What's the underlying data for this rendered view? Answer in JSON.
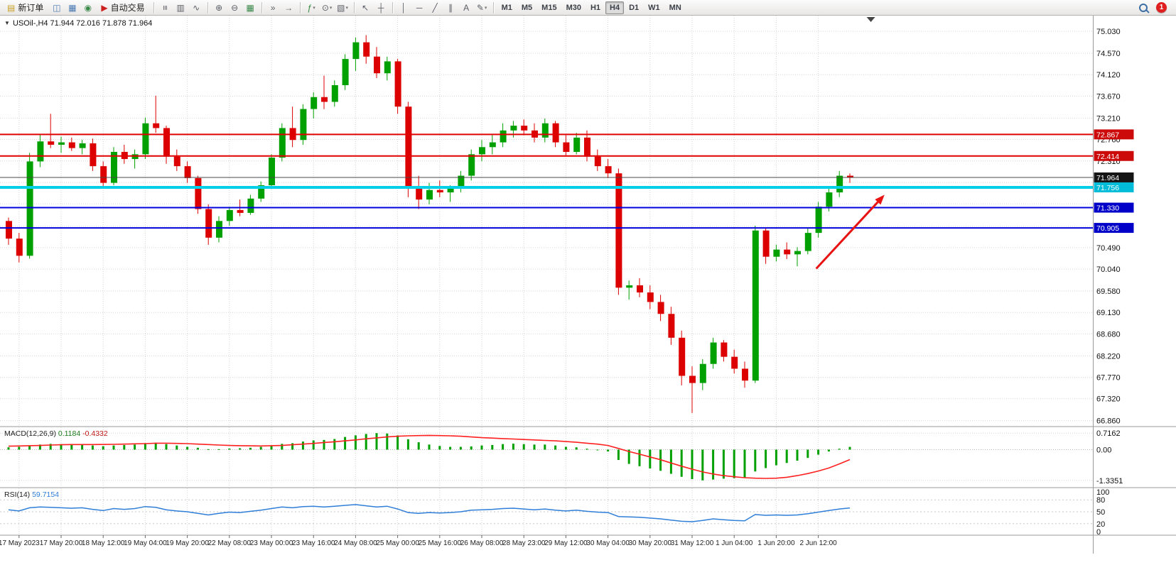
{
  "app": {
    "notification_count": "1"
  },
  "toolbar": {
    "items": [
      {
        "type": "button",
        "name": "new-order-button",
        "glyph": "▤",
        "glyph_color": "#c8a028",
        "label": "新订单"
      },
      {
        "type": "icon",
        "name": "charts-grid-icon",
        "glyph": "◫",
        "color": "#4a7ab5"
      },
      {
        "type": "icon",
        "name": "profiles-icon",
        "glyph": "▦",
        "color": "#4a7ab5"
      },
      {
        "type": "icon",
        "name": "market-watch-icon",
        "glyph": "◉",
        "color": "#3a8a4a"
      },
      {
        "type": "button",
        "name": "autotrading-button",
        "glyph": "▶",
        "glyph_color": "#cc2020",
        "label": "自动交易"
      },
      {
        "type": "sep"
      },
      {
        "type": "icon",
        "name": "bar-chart-type-icon",
        "glyph": "≡",
        "rot": true
      },
      {
        "type": "icon",
        "name": "candlestick-type-icon",
        "glyph": "▥"
      },
      {
        "type": "icon",
        "name": "line-chart-type-icon",
        "glyph": "∿"
      },
      {
        "type": "sep"
      },
      {
        "type": "icon",
        "name": "zoom-in-icon",
        "glyph": "⊕"
      },
      {
        "type": "icon",
        "name": "zoom-out-icon",
        "glyph": "⊖"
      },
      {
        "type": "icon",
        "name": "tile-windows-icon",
        "glyph": "▦",
        "color": "#3a8a4a"
      },
      {
        "type": "sep"
      },
      {
        "type": "icon",
        "name": "auto-scroll-icon",
        "glyph": "»"
      },
      {
        "type": "icon",
        "name": "chart-shift-icon",
        "glyph": "→"
      },
      {
        "type": "sep"
      },
      {
        "type": "icon",
        "name": "indicators-icon",
        "glyph": "ƒ",
        "color": "#2f8a3a",
        "caret": true
      },
      {
        "type": "icon",
        "name": "periods-icon",
        "glyph": "⊙",
        "caret": true
      },
      {
        "type": "icon",
        "name": "templates-icon",
        "glyph": "▧",
        "caret": true
      },
      {
        "type": "sep"
      },
      {
        "type": "icon",
        "name": "cursor-icon",
        "glyph": "↖"
      },
      {
        "type": "icon",
        "name": "crosshair-icon",
        "glyph": "┼"
      },
      {
        "type": "sep"
      },
      {
        "type": "icon",
        "name": "vertical-line-icon",
        "glyph": "│"
      },
      {
        "type": "icon",
        "name": "horizontal-line-icon",
        "glyph": "─"
      },
      {
        "type": "icon",
        "name": "trendline-icon",
        "glyph": "╱"
      },
      {
        "type": "icon",
        "name": "equidistant-channel-icon",
        "glyph": "∥"
      },
      {
        "type": "icon",
        "name": "text-icon",
        "glyph": "A"
      },
      {
        "type": "icon",
        "name": "arrows-tool-icon",
        "glyph": "✎",
        "caret": true
      },
      {
        "type": "sep"
      },
      {
        "type": "tf",
        "label": "M1"
      },
      {
        "type": "tf",
        "label": "M5"
      },
      {
        "type": "tf",
        "label": "M15"
      },
      {
        "type": "tf",
        "label": "M30"
      },
      {
        "type": "tf",
        "label": "H1"
      },
      {
        "type": "tf",
        "label": "H4",
        "active": true
      },
      {
        "type": "tf",
        "label": "D1"
      },
      {
        "type": "tf",
        "label": "W1"
      },
      {
        "type": "tf",
        "label": "MN"
      },
      {
        "type": "spacer"
      },
      {
        "type": "search",
        "name": "search-icon"
      },
      {
        "type": "badge",
        "name": "notification-badge"
      }
    ]
  },
  "chart_data": [
    {
      "type": "candlestick",
      "symbol": "USOil-",
      "timeframe": "H4",
      "ohlc": {
        "open": "71.944",
        "high": "72.016",
        "low": "71.878",
        "close": "71.964"
      },
      "collapse_glyph": "▼",
      "up_color": "#00a000",
      "down_color": "#dd0000",
      "price_range": [
        66.75,
        75.36
      ],
      "candles": [
        [
          71.05,
          71.12,
          70.55,
          70.68
        ],
        [
          70.68,
          70.8,
          70.18,
          70.32
        ],
        [
          70.32,
          72.48,
          70.26,
          72.3
        ],
        [
          72.3,
          72.88,
          72.18,
          72.72
        ],
        [
          72.72,
          73.3,
          72.58,
          72.65
        ],
        [
          72.65,
          72.82,
          72.48,
          72.7
        ],
        [
          72.7,
          72.8,
          72.52,
          72.58
        ],
        [
          72.58,
          72.75,
          72.45,
          72.68
        ],
        [
          72.68,
          72.78,
          72.1,
          72.2
        ],
        [
          72.2,
          72.3,
          71.76,
          71.85
        ],
        [
          71.85,
          72.6,
          71.8,
          72.5
        ],
        [
          72.5,
          72.65,
          72.25,
          72.35
        ],
        [
          72.35,
          72.55,
          72.15,
          72.45
        ],
        [
          72.45,
          73.22,
          72.35,
          73.1
        ],
        [
          73.1,
          73.68,
          72.9,
          73.0
        ],
        [
          73.0,
          73.05,
          72.25,
          72.4
        ],
        [
          72.4,
          72.55,
          72.1,
          72.2
        ],
        [
          72.2,
          72.3,
          71.85,
          71.95
        ],
        [
          71.95,
          72.0,
          71.2,
          71.3
        ],
        [
          71.3,
          71.4,
          70.55,
          70.7
        ],
        [
          70.7,
          71.15,
          70.6,
          71.05
        ],
        [
          71.05,
          71.35,
          70.95,
          71.28
        ],
        [
          71.28,
          71.5,
          71.15,
          71.22
        ],
        [
          71.22,
          71.6,
          71.18,
          71.52
        ],
        [
          71.52,
          71.88,
          71.45,
          71.8
        ],
        [
          71.8,
          72.45,
          71.72,
          72.38
        ],
        [
          72.38,
          73.1,
          72.3,
          73.0
        ],
        [
          73.0,
          73.45,
          72.6,
          72.75
        ],
        [
          72.75,
          73.5,
          72.65,
          73.4
        ],
        [
          73.4,
          73.75,
          73.2,
          73.65
        ],
        [
          73.65,
          74.1,
          73.4,
          73.55
        ],
        [
          73.55,
          74.0,
          73.45,
          73.9
        ],
        [
          73.9,
          74.55,
          73.8,
          74.45
        ],
        [
          74.45,
          74.9,
          74.2,
          74.8
        ],
        [
          74.8,
          74.95,
          74.35,
          74.5
        ],
        [
          74.5,
          74.7,
          74.05,
          74.15
        ],
        [
          74.15,
          74.5,
          74.0,
          74.4
        ],
        [
          74.4,
          74.45,
          73.3,
          73.45
        ],
        [
          73.45,
          73.55,
          71.55,
          71.75
        ],
        [
          71.75,
          72.0,
          71.3,
          71.5
        ],
        [
          71.5,
          71.85,
          71.4,
          71.7
        ],
        [
          71.7,
          71.9,
          71.55,
          71.65
        ],
        [
          71.65,
          71.8,
          71.45,
          71.75
        ],
        [
          71.75,
          72.1,
          71.65,
          72.0
        ],
        [
          72.0,
          72.55,
          71.9,
          72.45
        ],
        [
          72.45,
          72.75,
          72.3,
          72.6
        ],
        [
          72.6,
          72.85,
          72.45,
          72.7
        ],
        [
          72.7,
          73.1,
          72.6,
          72.95
        ],
        [
          72.95,
          73.15,
          72.8,
          73.05
        ],
        [
          73.05,
          73.18,
          72.85,
          72.95
        ],
        [
          72.95,
          73.1,
          72.7,
          72.8
        ],
        [
          72.8,
          73.2,
          72.7,
          73.1
        ],
        [
          73.1,
          73.15,
          72.6,
          72.7
        ],
        [
          72.7,
          72.85,
          72.4,
          72.5
        ],
        [
          72.5,
          72.9,
          72.45,
          72.8
        ],
        [
          72.8,
          72.95,
          72.3,
          72.4
        ],
        [
          72.4,
          72.55,
          72.1,
          72.2
        ],
        [
          72.2,
          72.35,
          71.95,
          72.05
        ],
        [
          72.05,
          72.15,
          69.5,
          69.65
        ],
        [
          69.65,
          69.8,
          69.4,
          69.7
        ],
        [
          69.7,
          69.85,
          69.45,
          69.55
        ],
        [
          69.55,
          69.7,
          69.2,
          69.35
        ],
        [
          69.35,
          69.5,
          68.95,
          69.1
        ],
        [
          69.1,
          69.25,
          68.45,
          68.6
        ],
        [
          68.6,
          68.75,
          67.6,
          67.8
        ],
        [
          67.8,
          68.0,
          67.02,
          67.65
        ],
        [
          67.65,
          68.15,
          67.5,
          68.05
        ],
        [
          68.05,
          68.6,
          67.95,
          68.5
        ],
        [
          68.5,
          68.55,
          68.1,
          68.2
        ],
        [
          68.2,
          68.35,
          67.85,
          67.95
        ],
        [
          67.95,
          68.1,
          67.55,
          67.7
        ],
        [
          67.7,
          70.95,
          67.65,
          70.85
        ],
        [
          70.85,
          70.9,
          70.15,
          70.3
        ],
        [
          70.3,
          70.55,
          70.2,
          70.45
        ],
        [
          70.45,
          70.6,
          70.25,
          70.35
        ],
        [
          70.35,
          70.5,
          70.1,
          70.42
        ],
        [
          70.42,
          70.9,
          70.35,
          70.8
        ],
        [
          70.8,
          71.45,
          70.7,
          71.35
        ],
        [
          71.35,
          71.75,
          71.25,
          71.65
        ],
        [
          71.65,
          72.1,
          71.55,
          72.0
        ],
        [
          72.0,
          72.05,
          71.85,
          71.96
        ]
      ],
      "x_axis": {
        "labels": [
          "17 May 2023",
          "17 May 20:00",
          "18 May 12:00",
          "19 May 04:00",
          "19 May 20:00",
          "22 May 08:00",
          "23 May 00:00",
          "23 May 16:00",
          "24 May 08:00",
          "25 May 00:00",
          "25 May 16:00",
          "26 May 08:00",
          "28 May 23:00",
          "29 May 12:00",
          "30 May 04:00",
          "30 May 20:00",
          "31 May 12:00",
          "1 Jun 04:00",
          "1 Jun 20:00",
          "2 Jun 12:00"
        ],
        "bar_index": [
          1,
          5,
          9,
          13,
          17,
          21,
          25,
          29,
          33,
          37,
          41,
          45,
          49,
          53,
          57,
          61,
          65,
          69,
          73,
          77
        ]
      },
      "y_axis": {
        "grid_values": [
          75.03,
          74.57,
          74.12,
          73.67,
          73.21,
          72.76,
          72.31,
          71.86,
          71.41,
          70.94,
          70.49,
          70.04,
          69.58,
          69.13,
          68.68,
          68.22,
          67.77,
          67.32,
          66.86
        ],
        "labels": [
          "75.030",
          "74.570",
          "74.120",
          "73.670",
          "73.210",
          "72.760",
          "72.310",
          "",
          "",
          "",
          "70.490",
          "70.040",
          "69.580",
          "69.130",
          "68.680",
          "68.220",
          "67.770",
          "67.320",
          "66.860"
        ]
      },
      "hlines": [
        {
          "price": 72.867,
          "label": "72.867",
          "color": "#e00000",
          "bg": "#cc0a0a",
          "width": 2
        },
        {
          "price": 72.414,
          "label": "72.414",
          "color": "#e00000",
          "bg": "#cc0a0a",
          "width": 2
        },
        {
          "price": 71.964,
          "label": "71.964",
          "color": "#4a4a4a",
          "bg": "#151515",
          "width": 1,
          "role": "current-price"
        },
        {
          "price": 71.756,
          "label": "71.756",
          "color": "#00cfe8",
          "bg": "#00bcd8",
          "width": 4
        },
        {
          "price": 71.33,
          "label": "71.330",
          "color": "#0000dc",
          "bg": "#0000c8",
          "width": 2
        },
        {
          "price": 70.905,
          "label": "70.905",
          "color": "#0000dc",
          "bg": "#0000c8",
          "width": 2
        }
      ],
      "arrow": {
        "bar_from": 76.8,
        "price_from": 70.05,
        "bar_to": 83.3,
        "price_to": 71.6,
        "color": "#e81414",
        "width": 3
      },
      "shift_marker_bar": 82
    },
    {
      "type": "macd",
      "label": "MACD(12,26,9)",
      "value_main": "0.1184",
      "value_signal": "-0.4332",
      "hist_color": "#00a000",
      "signal_color": "#ff2020",
      "y_ticks": [
        "0.7162",
        "0.00",
        "-1.3351"
      ],
      "y_tick_values": [
        0.7162,
        0,
        -1.3351
      ],
      "histogram": [
        0.1,
        0.12,
        0.18,
        0.22,
        0.25,
        0.24,
        0.22,
        0.22,
        0.18,
        0.15,
        0.18,
        0.2,
        0.22,
        0.28,
        0.3,
        0.24,
        0.18,
        0.12,
        0.08,
        0.02,
        0.02,
        0.05,
        0.06,
        0.08,
        0.12,
        0.18,
        0.25,
        0.28,
        0.35,
        0.4,
        0.42,
        0.46,
        0.55,
        0.62,
        0.68,
        0.7162,
        0.7,
        0.62,
        0.45,
        0.32,
        0.22,
        0.16,
        0.12,
        0.12,
        0.14,
        0.18,
        0.2,
        0.24,
        0.26,
        0.24,
        0.22,
        0.22,
        0.18,
        0.12,
        0.1,
        0.04,
        -0.02,
        -0.08,
        -0.45,
        -0.62,
        -0.72,
        -0.82,
        -0.92,
        -1.05,
        -1.18,
        -1.28,
        -1.3351,
        -1.3,
        -1.26,
        -1.24,
        -1.22,
        -0.95,
        -0.8,
        -0.68,
        -0.58,
        -0.48,
        -0.36,
        -0.22,
        -0.08,
        0.04,
        0.1184
      ],
      "signal": [
        0.15,
        0.16,
        0.17,
        0.18,
        0.2,
        0.21,
        0.22,
        0.22,
        0.22,
        0.225,
        0.23,
        0.24,
        0.25,
        0.26,
        0.28,
        0.28,
        0.27,
        0.26,
        0.24,
        0.22,
        0.2,
        0.18,
        0.17,
        0.165,
        0.16,
        0.17,
        0.18,
        0.21,
        0.24,
        0.27,
        0.31,
        0.34,
        0.38,
        0.42,
        0.47,
        0.51,
        0.55,
        0.58,
        0.6,
        0.61,
        0.62,
        0.61,
        0.6,
        0.58,
        0.55,
        0.52,
        0.5,
        0.48,
        0.46,
        0.44,
        0.42,
        0.4,
        0.38,
        0.35,
        0.32,
        0.28,
        0.24,
        0.18,
        0.05,
        -0.08,
        -0.2,
        -0.32,
        -0.44,
        -0.58,
        -0.72,
        -0.85,
        -0.97,
        -1.06,
        -1.13,
        -1.18,
        -1.22,
        -1.24,
        -1.25,
        -1.24,
        -1.2,
        -1.13,
        -1.04,
        -0.93,
        -0.8,
        -0.62,
        -0.4332
      ]
    },
    {
      "type": "rsi",
      "label": "RSI(14)",
      "value": "59.7154",
      "line_color": "#2f7ed8",
      "levels": [
        80,
        50,
        20
      ],
      "y_ticks": [
        "100",
        "80",
        "50",
        "20",
        "0"
      ],
      "y_tick_values": [
        100,
        80,
        50,
        20,
        0
      ],
      "values": [
        55,
        52,
        60,
        62,
        61,
        60,
        59,
        60,
        56,
        53,
        58,
        56,
        58,
        63,
        61,
        55,
        52,
        50,
        46,
        42,
        46,
        49,
        48,
        51,
        54,
        58,
        62,
        60,
        63,
        64,
        62,
        64,
        66,
        68,
        65,
        62,
        64,
        57,
        48,
        46,
        48,
        47,
        48,
        50,
        54,
        55,
        56,
        58,
        59,
        57,
        55,
        57,
        54,
        52,
        54,
        51,
        49,
        48,
        38,
        37,
        36,
        34,
        32,
        29,
        26,
        25,
        28,
        32,
        30,
        28,
        27,
        43,
        41,
        42,
        41,
        42,
        45,
        49,
        53,
        57,
        59.7
      ]
    }
  ]
}
